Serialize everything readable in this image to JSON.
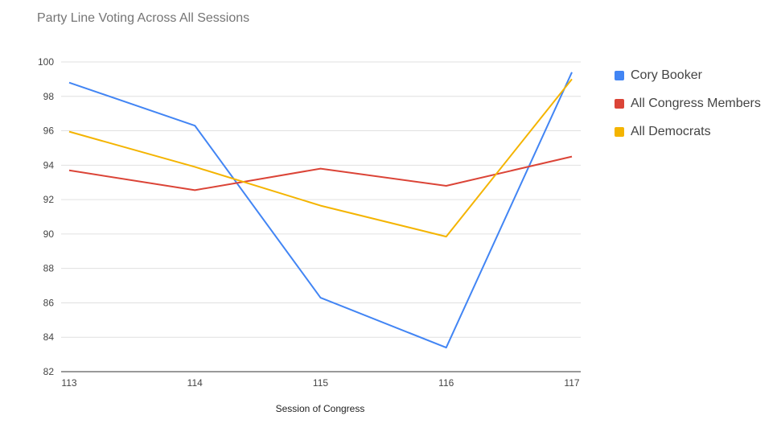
{
  "chart_data": {
    "type": "line",
    "title": "Party Line Voting Across All Sessions",
    "xlabel": "Session of Congress",
    "ylabel": "",
    "x": [
      "113",
      "114",
      "115",
      "116",
      "117"
    ],
    "ylim": [
      82,
      100
    ],
    "yticks": [
      "82",
      "84",
      "86",
      "88",
      "90",
      "92",
      "94",
      "96",
      "98",
      "100"
    ],
    "grid": true,
    "legend_position": "right",
    "series": [
      {
        "name": "Cory Booker",
        "color": "#4285F4",
        "values": [
          98.8,
          96.3,
          86.3,
          83.4,
          99.4
        ]
      },
      {
        "name": "All Congress Members",
        "color": "#DB4437",
        "values": [
          93.7,
          92.55,
          93.8,
          92.8,
          94.5
        ]
      },
      {
        "name": "All Democrats",
        "color": "#F4B400",
        "values": [
          95.95,
          93.9,
          91.65,
          89.85,
          99.0
        ]
      }
    ]
  }
}
